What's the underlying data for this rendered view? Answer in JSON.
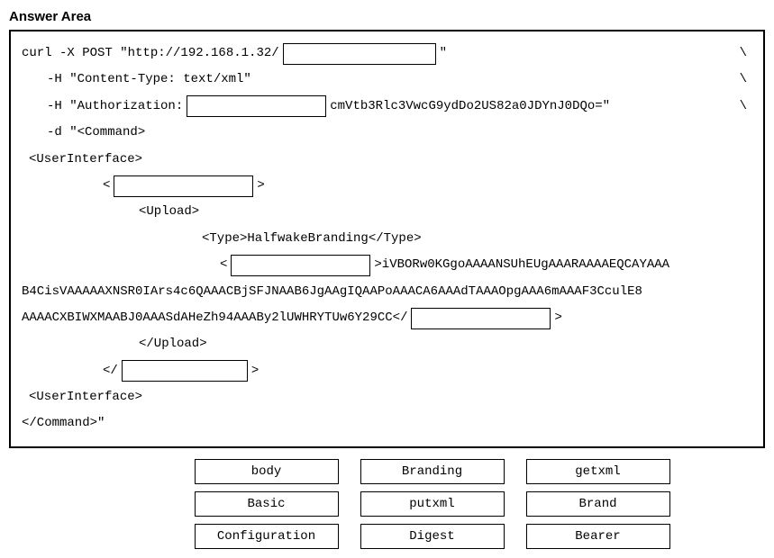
{
  "title": "Answer Area",
  "code": {
    "line1_pre": "curl -X POST \"http://192.168.1.32/",
    "line1_post": " \"",
    "line2": "-H \"Content-Type: text/xml\"",
    "line3_pre": "-H \"Authorization:",
    "line3_post": "cmVtb3Rlc3VwcG9ydDo2US82a0JDYnJ0DQo=\"",
    "line4": "-d \"<Command>",
    "line5": "<UserInterface>",
    "line6_open": "<",
    "line6_close": ">",
    "line7": "<Upload>",
    "line8": "<Type>HalfwakeBranding</Type>",
    "line9_open": "<",
    "line9_post": ">iVBORw0KGgoAAAANSUhEUgAAARAAAAEQCAYAAA",
    "line10": "B4CisVAAAAAXNSR0IArs4c6QAAACBjSFJNAAB6JgAAgIQAAPoAAACA6AAAdTAAAOpgAAA6mAAAF3CculE8",
    "line11_pre": "AAAACXBIWXMAABJ0AAASdAHeZh94AAABy2lUWHRYTUw6Y29CC</",
    "line11_close": ">",
    "line12": "</Upload>",
    "line13_open": "</",
    "line13_close": ">",
    "line14": "<UserInterface>",
    "line15": "</Command>\"",
    "backslash": "\\"
  },
  "options": {
    "row1": [
      "body",
      "Branding",
      "getxml"
    ],
    "row2": [
      "Basic",
      "putxml",
      "Brand"
    ],
    "row3": [
      "Configuration",
      "Digest",
      "Bearer"
    ]
  }
}
